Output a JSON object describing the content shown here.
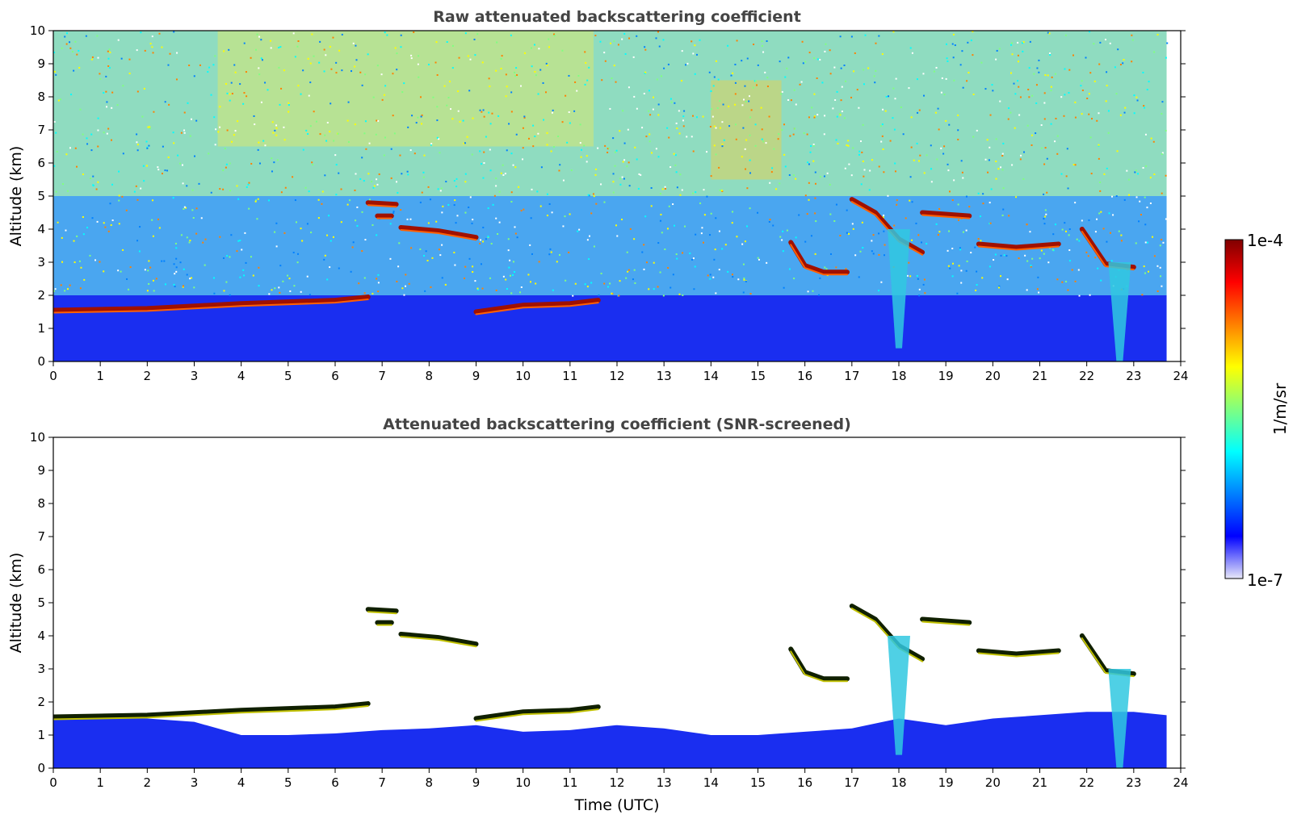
{
  "chart_data": [
    {
      "type": "heatmap",
      "title": "Raw attenuated backscattering coefficient",
      "xlabel": "",
      "ylabel": "Altitude (km)",
      "xlim": [
        0,
        24
      ],
      "ylim": [
        0,
        10
      ],
      "x_ticks": [
        "0",
        "1",
        "2",
        "3",
        "4",
        "5",
        "6",
        "7",
        "8",
        "9",
        "10",
        "11",
        "12",
        "13",
        "14",
        "15",
        "16",
        "17",
        "18",
        "19",
        "20",
        "21",
        "22",
        "23",
        "24"
      ],
      "y_ticks": [
        "0",
        "1",
        "2",
        "3",
        "4",
        "5",
        "6",
        "7",
        "8",
        "9",
        "10"
      ],
      "data_end_hour": 23.7,
      "features": [
        {
          "kind": "boundary-layer-top",
          "points": [
            [
              0,
              1.55
            ],
            [
              2,
              1.6
            ],
            [
              4,
              1.75
            ],
            [
              6,
              1.85
            ],
            [
              6.7,
              1.95
            ]
          ]
        },
        {
          "kind": "cloud-layer",
          "points": [
            [
              6.7,
              4.8
            ],
            [
              7.3,
              4.75
            ]
          ]
        },
        {
          "kind": "cloud-layer",
          "points": [
            [
              6.9,
              4.4
            ],
            [
              7.2,
              4.4
            ]
          ]
        },
        {
          "kind": "cloud-layer",
          "points": [
            [
              7.4,
              4.05
            ],
            [
              8.2,
              3.95
            ],
            [
              9.0,
              3.75
            ]
          ]
        },
        {
          "kind": "cloud-layer",
          "points": [
            [
              9.0,
              1.5
            ],
            [
              10.0,
              1.7
            ],
            [
              11.0,
              1.75
            ],
            [
              11.6,
              1.85
            ]
          ]
        },
        {
          "kind": "cloud-layer",
          "points": [
            [
              15.7,
              3.6
            ],
            [
              16.0,
              2.9
            ],
            [
              16.4,
              2.7
            ],
            [
              16.9,
              2.7
            ]
          ]
        },
        {
          "kind": "cloud-layer",
          "points": [
            [
              17.0,
              4.9
            ],
            [
              17.5,
              4.5
            ],
            [
              18.0,
              3.7
            ],
            [
              18.5,
              3.3
            ]
          ]
        },
        {
          "kind": "cloud-layer",
          "points": [
            [
              18.5,
              4.5
            ],
            [
              19.5,
              4.4
            ]
          ]
        },
        {
          "kind": "cloud-layer",
          "points": [
            [
              19.7,
              3.55
            ],
            [
              20.5,
              3.45
            ],
            [
              21.4,
              3.55
            ]
          ]
        },
        {
          "kind": "cloud-layer",
          "points": [
            [
              21.9,
              4.0
            ],
            [
              22.4,
              2.95
            ],
            [
              23.0,
              2.85
            ]
          ]
        },
        {
          "kind": "precipitation-plume",
          "x": 18.0,
          "from": 4.0,
          "to": 0.4
        },
        {
          "kind": "precipitation-plume",
          "x": 22.7,
          "from": 3.0,
          "to": 0.0
        }
      ]
    },
    {
      "type": "heatmap",
      "title": "Attenuated backscattering coefficient (SNR-screened)",
      "xlabel": "Time (UTC)",
      "ylabel": "Altitude (km)",
      "xlim": [
        0,
        24
      ],
      "ylim": [
        0,
        10
      ],
      "x_ticks": [
        "0",
        "1",
        "2",
        "3",
        "4",
        "5",
        "6",
        "7",
        "8",
        "9",
        "10",
        "11",
        "12",
        "13",
        "14",
        "15",
        "16",
        "17",
        "18",
        "19",
        "20",
        "21",
        "22",
        "23",
        "24"
      ],
      "y_ticks": [
        "0",
        "1",
        "2",
        "3",
        "4",
        "5",
        "6",
        "7",
        "8",
        "9",
        "10"
      ],
      "data_end_hour": 23.7,
      "screened_boundary_layer": [
        [
          0,
          1.6
        ],
        [
          1,
          1.55
        ],
        [
          2,
          1.5
        ],
        [
          3,
          1.4
        ],
        [
          3.5,
          1.2
        ],
        [
          4,
          1.0
        ],
        [
          5,
          1.0
        ],
        [
          6,
          1.05
        ],
        [
          7,
          1.15
        ],
        [
          8,
          1.2
        ],
        [
          9,
          1.3
        ],
        [
          10,
          1.1
        ],
        [
          11,
          1.15
        ],
        [
          12,
          1.3
        ],
        [
          13,
          1.2
        ],
        [
          14,
          1.0
        ],
        [
          15,
          1.0
        ],
        [
          16,
          1.1
        ],
        [
          17,
          1.2
        ],
        [
          18,
          1.5
        ],
        [
          19,
          1.3
        ],
        [
          20,
          1.5
        ],
        [
          21,
          1.6
        ],
        [
          22,
          1.7
        ],
        [
          23,
          1.7
        ],
        [
          23.7,
          1.6
        ]
      ],
      "features": "same cloud features as raw panel, noise removed"
    }
  ],
  "colorbar": {
    "label": "1/m/sr",
    "max_label": "1e-4",
    "min_label": "1e-7",
    "colormap": "jet",
    "colors": [
      "#e8e8f8",
      "#0000ff",
      "#0080ff",
      "#00ffff",
      "#80ff80",
      "#ffff00",
      "#ff8000",
      "#ff0000",
      "#800000"
    ]
  }
}
